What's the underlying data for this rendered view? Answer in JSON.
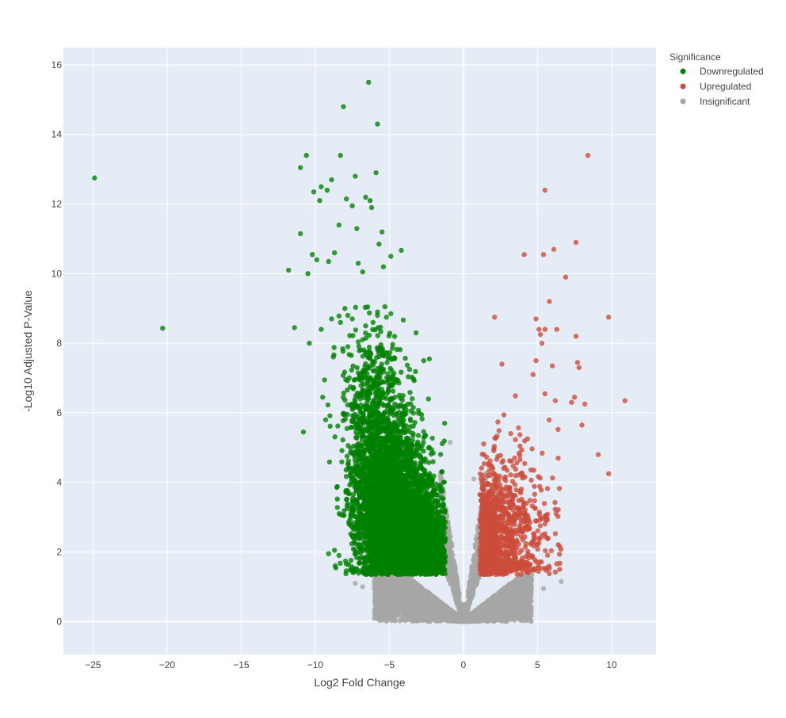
{
  "chart_data": {
    "type": "scatter",
    "title": "",
    "xlabel": "Log2 Fold Change",
    "ylabel": "-Log10 Adjusted P-Value",
    "xlim": [
      -27,
      13
    ],
    "ylim": [
      -0.95,
      16.5
    ],
    "xticks": [
      -25,
      -20,
      -15,
      -10,
      -5,
      0,
      5,
      10
    ],
    "xtick_labels": [
      "−25",
      "−20",
      "−15",
      "−10",
      "−5",
      "0",
      "5",
      "10"
    ],
    "yticks": [
      0,
      2,
      4,
      6,
      8,
      10,
      12,
      14,
      16
    ],
    "ytick_labels": [
      "0",
      "2",
      "4",
      "6",
      "8",
      "10",
      "12",
      "14",
      "16"
    ],
    "grid": true,
    "legend": {
      "title": "Significance",
      "position": "top-right",
      "entries": [
        "Downregulated",
        "Upregulated",
        "Insignificant"
      ]
    },
    "series": [
      {
        "name": "Downregulated",
        "color": "#008000",
        "x": [
          -6.4,
          -8.1,
          -5.8,
          -10.6,
          -8.3,
          -11,
          -5.9,
          -9.6,
          -8.9,
          -7.3,
          -9.2,
          -10.1,
          -7.9,
          -6.6,
          -6.3,
          -7.5,
          -9.7,
          -8.4,
          -6.2,
          -11,
          -5.5,
          -7.2,
          -5.7,
          -10.2,
          -8.7,
          -9.1,
          -4.9,
          -11.8,
          -5.4,
          -9.9,
          -7.1,
          -6.8,
          -10.5,
          -11.4,
          -8,
          -5.3,
          -4.9,
          -24.9,
          -20.3,
          -7.8,
          -8.9,
          -7.5,
          -8.3,
          -9.6,
          -6.6,
          -5.8,
          -5.2,
          -6.1,
          -10.4,
          -10.8,
          -9.5,
          -9.3,
          -6.8,
          -7.8,
          -2.3,
          -3.2,
          -8.4,
          -9.1,
          -8.7
        ],
        "y": [
          15.5,
          14.8,
          14.3,
          13.4,
          13.4,
          13.05,
          12.9,
          12.5,
          12.7,
          12.8,
          12.4,
          12.35,
          12.15,
          12.2,
          12.1,
          11.95,
          12.1,
          11.4,
          11.9,
          11.15,
          11.2,
          11.3,
          10.85,
          10.55,
          10.6,
          10.35,
          10.5,
          10.1,
          10.2,
          10.4,
          10.3,
          10.05,
          10.0,
          8.45,
          9.0,
          9.05,
          8.85,
          12.75,
          8.43,
          8.8,
          8.7,
          8.7,
          8.6,
          8.4,
          8.5,
          8.8,
          8.75,
          8.6,
          8.0,
          5.45,
          6.45,
          5.8,
          8.1,
          7.9,
          7.55,
          8.3,
          1.9,
          1.95,
          2.05
        ],
        "density": [
          {
            "cx": -4.6,
            "cy": 2.6,
            "sx": 1.3,
            "sy": 1.05,
            "n": 3000
          },
          {
            "cx": -5.2,
            "cy": 4.3,
            "sx": 1.25,
            "sy": 1.1,
            "n": 1500
          },
          {
            "cx": -6.2,
            "cy": 6.6,
            "sx": 1.05,
            "sy": 0.95,
            "n": 350
          },
          {
            "cx": -2.6,
            "cy": 2.2,
            "sx": 0.75,
            "sy": 0.7,
            "n": 800
          }
        ]
      },
      {
        "name": "Upregulated",
        "color": "#cc4c3a",
        "x": [
          8.4,
          5.5,
          7.6,
          4.1,
          5.4,
          6.1,
          6.9,
          5.8,
          4.9,
          5.1,
          2.1,
          9.8,
          5.5,
          5.2,
          6.3,
          7.6,
          5.3,
          7.7,
          4.9,
          2.6,
          6.0,
          4.7,
          7.8,
          5.5,
          6.2,
          10.9,
          8.2,
          7.5,
          7.3,
          8.0,
          9.1,
          9.8
        ],
        "y": [
          13.4,
          12.4,
          10.9,
          10.55,
          10.55,
          10.7,
          9.9,
          9.2,
          8.7,
          8.4,
          8.75,
          8.75,
          8.4,
          8.25,
          8.4,
          8.2,
          8.0,
          7.45,
          7.5,
          7.4,
          7.35,
          7.1,
          7.3,
          6.55,
          6.35,
          6.35,
          6.25,
          6.45,
          6.3,
          5.65,
          4.8,
          4.25
        ],
        "density": [
          {
            "cx": 1.7,
            "cy": 2.3,
            "sx": 0.35,
            "sy": 0.9,
            "n": 550
          },
          {
            "cx": 2.7,
            "cy": 2.5,
            "sx": 0.9,
            "sy": 1.1,
            "n": 500
          },
          {
            "cx": 4.3,
            "cy": 2.9,
            "sx": 1.1,
            "sy": 1.25,
            "n": 200
          }
        ]
      },
      {
        "name": "Insignificant",
        "color": "#a6a6a6",
        "x": [
          -0.9,
          6.6,
          5.4,
          0.7,
          -7.3,
          -6.8
        ],
        "y": [
          5.15,
          1.15,
          0.95,
          4.1,
          1.1,
          1.0
        ],
        "density": [
          {
            "mode": "v",
            "xmin": -6.0,
            "xmax": 4.6,
            "n": 5000
          },
          {
            "mode": "edge",
            "xmin": -1.6,
            "xmax": 1.6,
            "n": 900
          }
        ]
      }
    ]
  }
}
